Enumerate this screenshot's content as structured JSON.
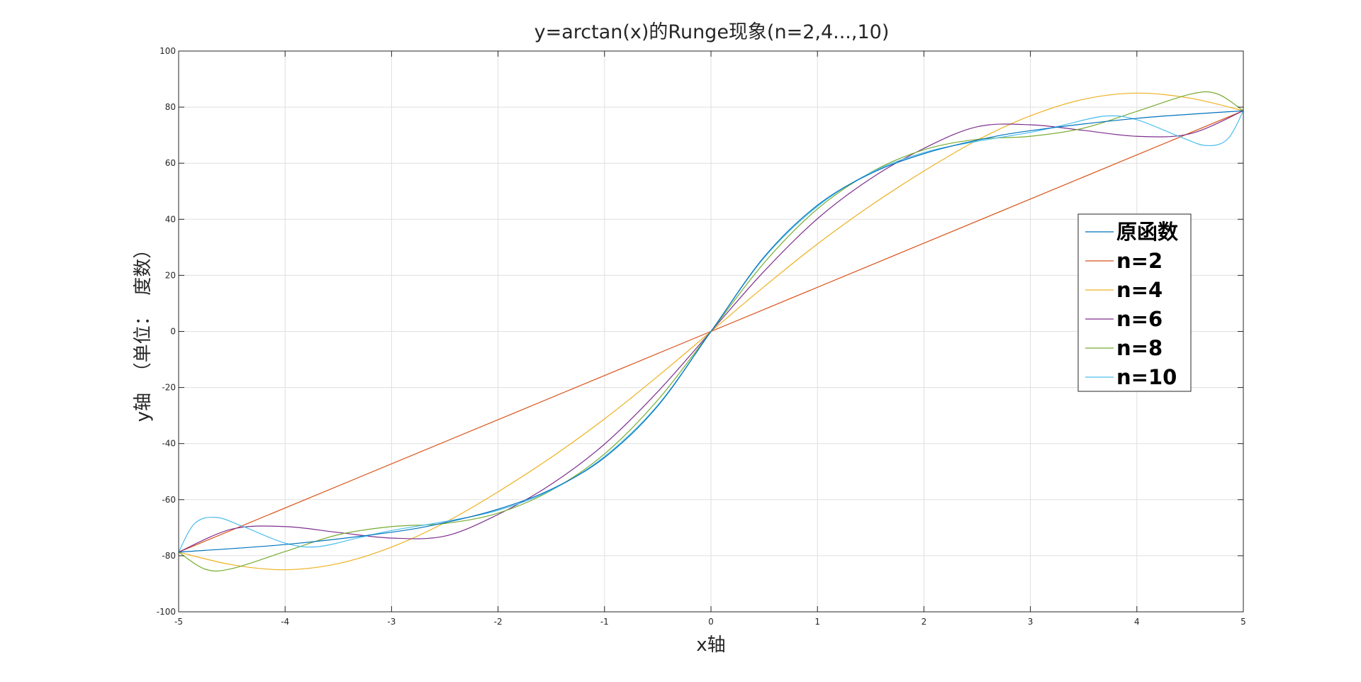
{
  "chart_data": {
    "type": "line",
    "title": "y=arctan(x)的Runge现象(n=2,4...,10)",
    "xlabel": "x轴",
    "ylabel": "y轴  （单位：  度数）",
    "xlim": [
      -5,
      5
    ],
    "ylim": [
      -100,
      100
    ],
    "xticks": [
      -5,
      -4,
      -3,
      -2,
      -1,
      0,
      1,
      2,
      3,
      4,
      5
    ],
    "yticks": [
      -100,
      -80,
      -60,
      -40,
      -20,
      0,
      20,
      40,
      60,
      80,
      100
    ],
    "grid": true,
    "legend_position": "right",
    "series": [
      {
        "name": "原函数",
        "color": "#0072BD",
        "x": [
          -5,
          -4,
          -3,
          -2.5,
          -2,
          -1.5,
          -1,
          -0.5,
          0,
          0.5,
          1,
          1.5,
          2,
          2.5,
          3,
          4,
          5
        ],
        "y": [
          -78.7,
          -76.0,
          -71.6,
          -68.2,
          -63.4,
          -56.3,
          -45.0,
          -26.6,
          0,
          26.6,
          45.0,
          56.3,
          63.4,
          68.2,
          71.6,
          76.0,
          78.7
        ]
      },
      {
        "name": "n=2",
        "color": "#D95319",
        "x": [
          -5,
          0,
          5
        ],
        "y": [
          -78.7,
          0,
          78.7
        ]
      },
      {
        "name": "n=4",
        "color": "#EDB120",
        "x": [
          -5,
          -4.5,
          -4,
          -3.5,
          -3,
          -2.5,
          -2,
          -1.5,
          -1,
          -0.5,
          0,
          0.5,
          1,
          1.5,
          2,
          2.5,
          3,
          3.5,
          4,
          4.5,
          5
        ],
        "y": [
          -78.7,
          -83.2,
          -85.0,
          -82.8,
          -76.9,
          -68.2,
          -57.2,
          -44.9,
          -31.2,
          -16.0,
          0,
          16.0,
          31.2,
          44.9,
          57.2,
          68.2,
          76.9,
          82.8,
          85.0,
          83.2,
          78.7
        ]
      },
      {
        "name": "n=6",
        "color": "#7E2F8E",
        "x": [
          -5,
          -4.5,
          -4,
          -3.5,
          -3,
          -2.5,
          -2,
          -1.5,
          -1,
          -0.5,
          0,
          0.5,
          1,
          1.5,
          2,
          2.5,
          3,
          3.5,
          4,
          4.5,
          5
        ],
        "y": [
          -78.7,
          -70.5,
          -69.6,
          -71.7,
          -73.7,
          -73.0,
          -65.3,
          -54.5,
          -40.2,
          -21.5,
          0,
          21.5,
          40.2,
          54.5,
          65.3,
          73.0,
          73.7,
          71.7,
          69.6,
          70.5,
          78.7
        ]
      },
      {
        "name": "n=8",
        "color": "#77AC30",
        "x": [
          -5,
          -4.75,
          -4.5,
          -4,
          -3.5,
          -3,
          -2.5,
          -2,
          -1.5,
          -1,
          -0.5,
          0,
          0.5,
          1,
          1.5,
          2,
          2.5,
          3,
          3.5,
          4,
          4.5,
          4.75,
          5
        ],
        "y": [
          -78.7,
          -84.8,
          -84.6,
          -78.5,
          -72.5,
          -69.6,
          -68.5,
          -64.8,
          -56.7,
          -43.7,
          -24.5,
          0,
          24.5,
          43.7,
          56.7,
          64.8,
          68.5,
          69.6,
          72.5,
          78.5,
          84.6,
          84.8,
          78.7
        ]
      },
      {
        "name": "n=10",
        "color": "#4DBEEE",
        "x": [
          -5,
          -4.85,
          -4.65,
          -4.4,
          -4,
          -3.7,
          -3.3,
          -3,
          -2.5,
          -2,
          -1.5,
          -1,
          -0.5,
          0,
          0.5,
          1,
          1.5,
          2,
          2.5,
          3,
          3.3,
          3.7,
          4,
          4.4,
          4.65,
          4.85,
          5
        ],
        "y": [
          -78.7,
          -68.5,
          -66.3,
          -69.5,
          -75.5,
          -76.8,
          -73.5,
          -71.0,
          -67.8,
          -63.8,
          -56.6,
          -44.6,
          -26.3,
          0,
          26.3,
          44.6,
          56.6,
          63.8,
          67.8,
          71.0,
          73.5,
          76.8,
          75.5,
          69.5,
          66.3,
          68.5,
          78.7
        ]
      }
    ]
  }
}
